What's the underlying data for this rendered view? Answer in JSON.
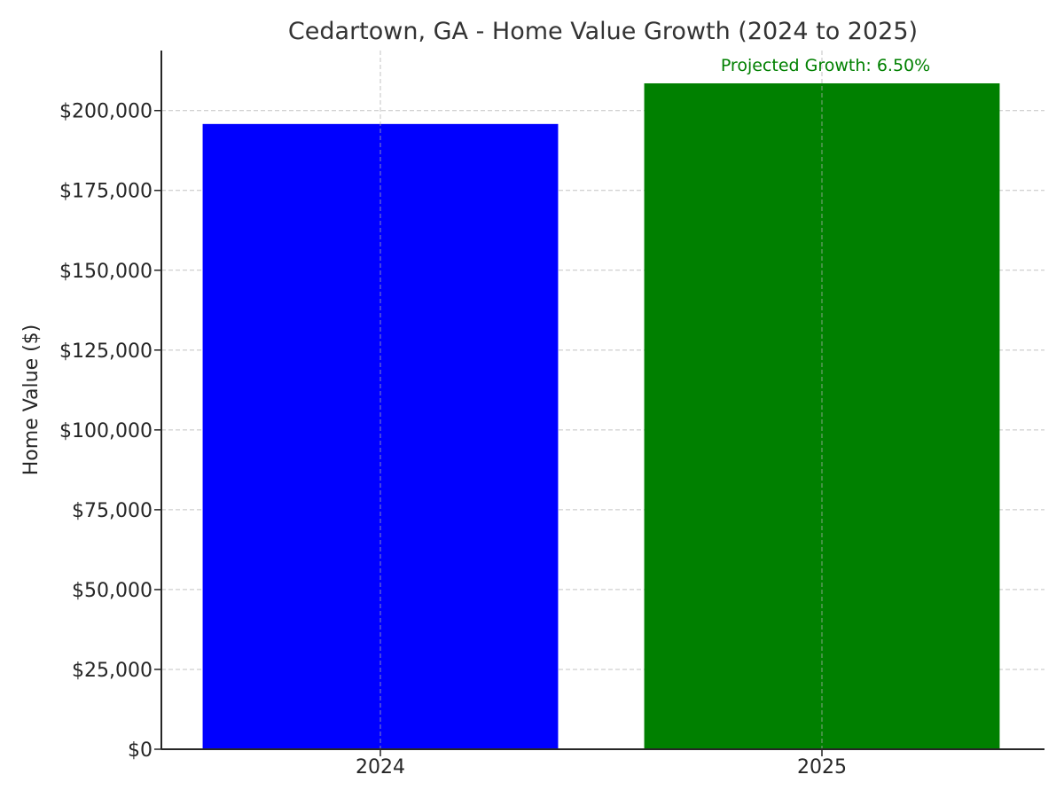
{
  "chart_data": {
    "type": "bar",
    "title": "Cedartown, GA - Home Value Growth (2024 to 2025)",
    "xlabel": "",
    "ylabel": "Home Value ($)",
    "categories": [
      "2024",
      "2025"
    ],
    "values": [
      195800,
      208527
    ],
    "bar_colors": [
      "#0000ff",
      "#008000"
    ],
    "ylim": [
      0,
      218800
    ],
    "yticks": [
      0,
      25000,
      50000,
      75000,
      100000,
      125000,
      150000,
      175000,
      200000
    ],
    "ytick_labels": [
      "$0",
      "$25,000",
      "$50,000",
      "$75,000",
      "$100,000",
      "$125,000",
      "$150,000",
      "$175,000",
      "$200,000"
    ],
    "grid": true,
    "annotation": {
      "text": "Projected Growth: 6.50%",
      "color": "#008000"
    }
  }
}
